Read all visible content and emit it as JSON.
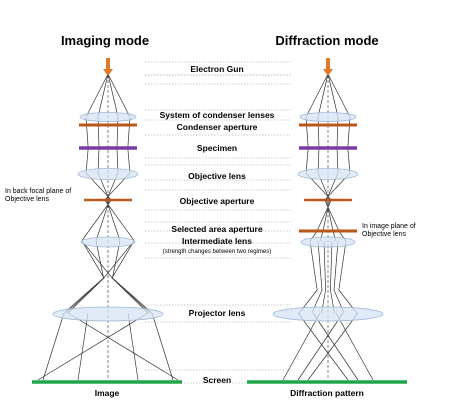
{
  "titles": {
    "imaging": "Imaging mode",
    "diffraction": "Diffraction mode"
  },
  "components": {
    "electron_gun": "Electron Gun",
    "condenser_lenses": "System of condenser lenses",
    "condenser_aperture": "Condenser aperture",
    "specimen": "Specimen",
    "objective_lens": "Objective lens",
    "objective_aperture": "Objective aperture",
    "selected_area_aperture": "Selected area aperture",
    "intermediate_lens": "Intermediate lens",
    "intermediate_note": "(strength changes between two regimes)",
    "projector_lens": "Projector lens",
    "screen": "Screen"
  },
  "side_labels": {
    "back_focal_plane": "In back focal plane of Objective lens",
    "image_plane": "In image plane of Objective lens"
  },
  "bottom_labels": {
    "image": "Image",
    "diffraction_pattern": "Diffraction pattern"
  },
  "colors": {
    "gun_arrow": "#e07a2a",
    "aperture": "#b9571b",
    "specimen": "#7a3aa8",
    "lens_fill": "#d6e4f4",
    "lens_stroke": "#9fb8d8",
    "screen": "#22a54a",
    "ray": "#333333"
  }
}
